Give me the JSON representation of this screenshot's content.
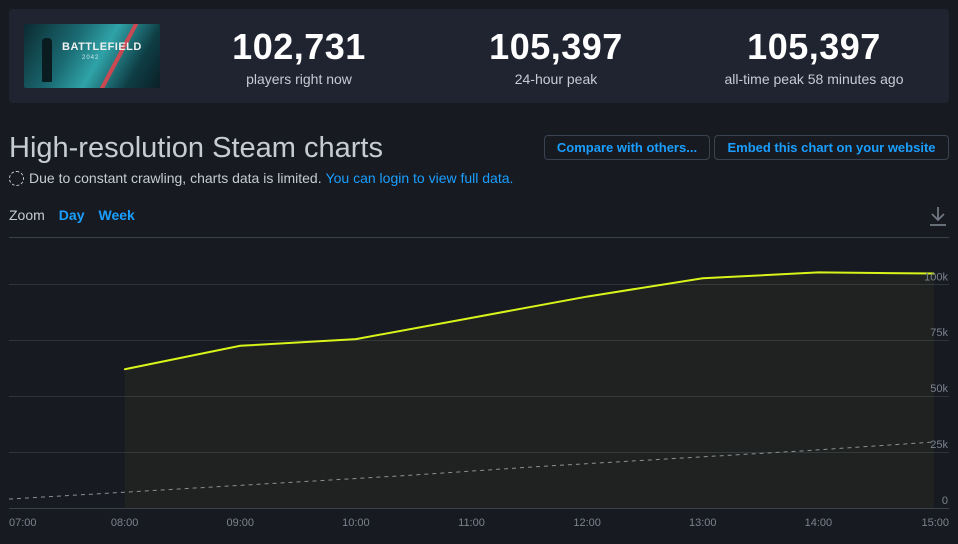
{
  "game": {
    "name": "BATTLEFIELD",
    "subtitle": "2042"
  },
  "stats": [
    {
      "value": "102,731",
      "label": "players right now"
    },
    {
      "value": "105,397",
      "label": "24-hour peak"
    },
    {
      "value": "105,397",
      "label": "all-time peak 58 minutes ago"
    }
  ],
  "page": {
    "title": "High-resolution Steam charts",
    "compare_label": "Compare with others...",
    "embed_label": "Embed this chart on your website",
    "notice_text": "Due to constant crawling, charts data is limited.",
    "login_link": "You can login to view full data."
  },
  "zoom": {
    "label": "Zoom",
    "options": [
      "Day",
      "Week"
    ]
  },
  "colors": {
    "line": "#d9f41a",
    "link": "#1a9fff",
    "background": "#171a21"
  },
  "chart_data": {
    "type": "line",
    "x": [
      "08:00",
      "09:00",
      "10:00",
      "11:00",
      "12:00",
      "13:00",
      "14:00",
      "15:00"
    ],
    "x_ticks": [
      "07:00",
      "08:00",
      "09:00",
      "10:00",
      "11:00",
      "12:00",
      "13:00",
      "14:00",
      "15:00"
    ],
    "y_ticks": [
      "0",
      "25k",
      "50k",
      "75k",
      "100k"
    ],
    "ylim": [
      0,
      118000
    ],
    "series": [
      {
        "values": [
          62000,
          72500,
          75500,
          85000,
          94500,
          102700,
          105300,
          104800
        ],
        "style": "solid"
      },
      {
        "values": [
          4000,
          7500,
          11000,
          14500,
          18500,
          22000,
          25500,
          29500
        ],
        "x_start": "07:00",
        "style": "dashed"
      }
    ],
    "grid": true
  }
}
